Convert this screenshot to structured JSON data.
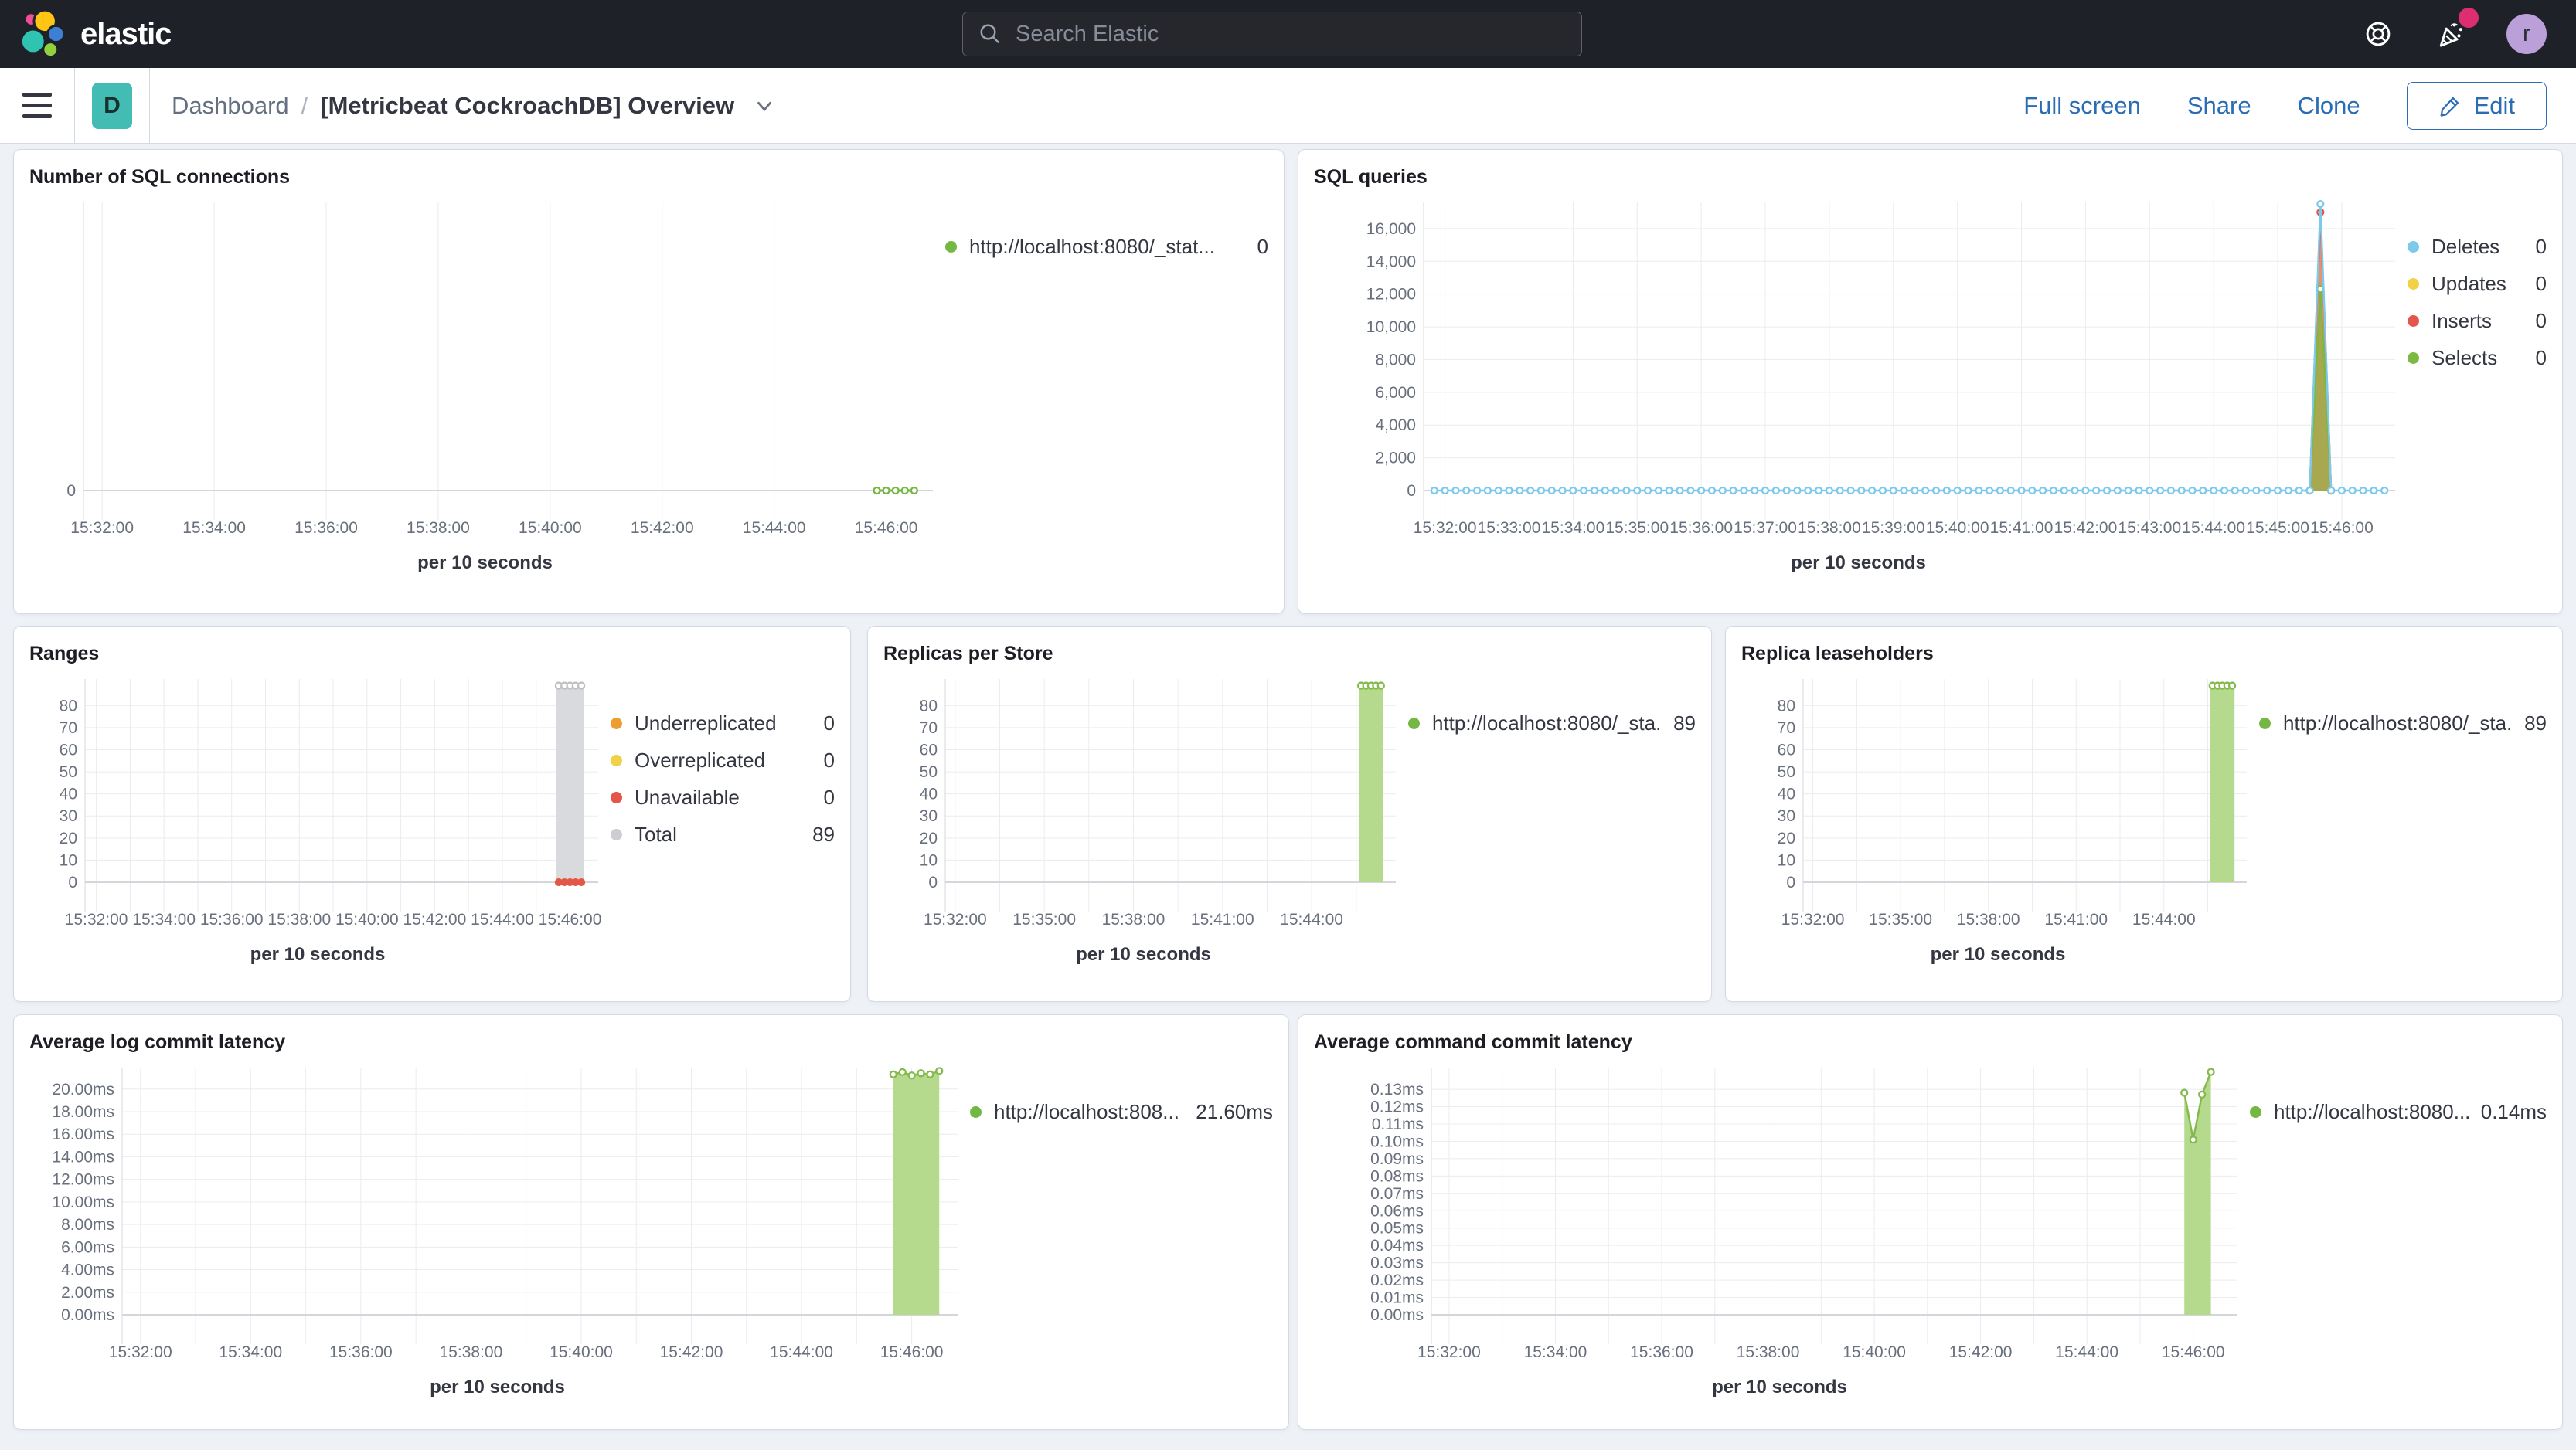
{
  "header": {
    "brand": "elastic",
    "search_placeholder": "Search Elastic",
    "avatar_initial": "r"
  },
  "chrome": {
    "badge": "D",
    "breadcrumb_root": "Dashboard",
    "breadcrumb_separator": "/",
    "title": "[Metricbeat CockroachDB] Overview",
    "full_screen": "Full screen",
    "share": "Share",
    "clone": "Clone",
    "edit": "Edit"
  },
  "chart_data": [
    {
      "type": "line",
      "title": "Number of SQL connections",
      "xlabel": "per 10 seconds",
      "xlim": [
        "15:31:40",
        "15:46:50"
      ],
      "xticks": [
        "15:32:00",
        "15:34:00",
        "15:36:00",
        "15:38:00",
        "15:40:00",
        "15:42:00",
        "15:44:00",
        "15:46:00"
      ],
      "minor_grid": false,
      "ylim": [
        0,
        1
      ],
      "yticks": [
        {
          "v": 0,
          "label": "0"
        }
      ],
      "series": [
        {
          "name": "http://localhost:8080/_stat...",
          "render": "line",
          "color": "#74b843",
          "stroke_width": 3,
          "marker": true,
          "points": [
            [
              "15:45:50",
              0
            ],
            [
              "15:46:00",
              0
            ],
            [
              "15:46:10",
              0
            ],
            [
              "15:46:20",
              0
            ],
            [
              "15:46:30",
              0
            ]
          ]
        }
      ],
      "legend": [
        {
          "label": "http://localhost:8080/_stat...",
          "value": "0",
          "color": "#74b843"
        }
      ]
    },
    {
      "type": "line",
      "title": "SQL queries",
      "xlabel": "per 10 seconds",
      "xlim": [
        "15:31:40",
        "15:46:50"
      ],
      "xticks": [
        "15:32:00",
        "15:33:00",
        "15:34:00",
        "15:35:00",
        "15:36:00",
        "15:37:00",
        "15:38:00",
        "15:39:00",
        "15:40:00",
        "15:41:00",
        "15:42:00",
        "15:43:00",
        "15:44:00",
        "15:45:00",
        "15:46:00"
      ],
      "minor_grid": false,
      "ylim": [
        0,
        17600
      ],
      "yticks": [
        {
          "v": 0,
          "label": "0"
        },
        {
          "v": 2000,
          "label": "2,000"
        },
        {
          "v": 4000,
          "label": "4,000"
        },
        {
          "v": 6000,
          "label": "6,000"
        },
        {
          "v": 8000,
          "label": "8,000"
        },
        {
          "v": 10000,
          "label": "10,000"
        },
        {
          "v": 12000,
          "label": "12,000"
        },
        {
          "v": 14000,
          "label": "14,000"
        },
        {
          "v": 16000,
          "label": "16,000"
        }
      ],
      "series": [
        {
          "name": "Updates",
          "render": "area",
          "color": "#f1d246",
          "fill_opacity": 0.55,
          "stroke_width": 2.5,
          "points": [
            [
              "15:45:30",
              0
            ],
            [
              "15:45:40",
              17100
            ],
            [
              "15:45:50",
              0
            ]
          ]
        },
        {
          "name": "Inserts",
          "render": "area",
          "color": "#e4564a",
          "fill_opacity": 0.6,
          "stroke_width": 2.5,
          "marker": true,
          "points": [
            [
              "15:45:30",
              0
            ],
            [
              "15:45:40",
              17000
            ],
            [
              "15:45:50",
              0
            ]
          ]
        },
        {
          "name": "Selects",
          "render": "area",
          "color": "#7cb940",
          "fill_opacity": 0.6,
          "stroke_width": 2.5,
          "marker": true,
          "points": [
            [
              "15:45:30",
              0
            ],
            [
              "15:45:40",
              12300
            ],
            [
              "15:45:50",
              0
            ]
          ]
        },
        {
          "name": "Deletes",
          "render": "line",
          "color": "#7dc9ec",
          "stroke_width": 2.5,
          "marker": true,
          "points": {
            "start": "15:31:50",
            "end": "15:46:40",
            "step_s": 10,
            "value": 0,
            "spikes": {
              "15:45:40": 17500
            }
          }
        }
      ],
      "legend": [
        {
          "label": "Deletes",
          "value": "0",
          "color": "#7dc9ec"
        },
        {
          "label": "Updates",
          "value": "0",
          "color": "#f1d246"
        },
        {
          "label": "Inserts",
          "value": "0",
          "color": "#e4564a"
        },
        {
          "label": "Selects",
          "value": "0",
          "color": "#7cb940"
        }
      ]
    },
    {
      "type": "bar",
      "title": "Ranges",
      "xlabel": "per 10 seconds",
      "xlim": [
        "15:31:40",
        "15:46:50"
      ],
      "xticks": [
        "15:32:00",
        "15:34:00",
        "15:36:00",
        "15:38:00",
        "15:40:00",
        "15:42:00",
        "15:44:00",
        "15:46:00"
      ],
      "minor_grid": true,
      "ylim": [
        0,
        92
      ],
      "yticks": [
        {
          "v": 0,
          "label": "0"
        },
        {
          "v": 10,
          "label": "10"
        },
        {
          "v": 20,
          "label": "20"
        },
        {
          "v": 30,
          "label": "30"
        },
        {
          "v": 40,
          "label": "40"
        },
        {
          "v": 50,
          "label": "50"
        },
        {
          "v": 60,
          "label": "60"
        },
        {
          "v": 70,
          "label": "70"
        },
        {
          "v": 80,
          "label": "80"
        }
      ],
      "series": [
        {
          "name": "Total",
          "render": "bar",
          "color": "#d9dadd",
          "stroke": "#bfc0c4",
          "marker": true,
          "points": [
            [
              "15:45:40",
              89
            ],
            [
              "15:45:50",
              89
            ],
            [
              "15:46:00",
              89
            ],
            [
              "15:46:10",
              89
            ],
            [
              "15:46:20",
              89
            ]
          ]
        },
        {
          "name": "Underreplicated",
          "render": "dots",
          "color": "#ee9d32",
          "points": [
            [
              "15:45:40",
              0
            ],
            [
              "15:45:50",
              0
            ],
            [
              "15:46:00",
              0
            ],
            [
              "15:46:10",
              0
            ],
            [
              "15:46:20",
              0
            ]
          ]
        },
        {
          "name": "Overreplicated",
          "render": "dots",
          "color": "#f1d246",
          "points": [
            [
              "15:45:40",
              0
            ],
            [
              "15:45:50",
              0
            ],
            [
              "15:46:00",
              0
            ],
            [
              "15:46:10",
              0
            ],
            [
              "15:46:20",
              0
            ]
          ]
        },
        {
          "name": "Unavailable",
          "render": "dots",
          "color": "#e4564a",
          "points": [
            [
              "15:45:40",
              0
            ],
            [
              "15:45:50",
              0
            ],
            [
              "15:46:00",
              0
            ],
            [
              "15:46:10",
              0
            ],
            [
              "15:46:20",
              0
            ]
          ]
        }
      ],
      "legend": [
        {
          "label": "Underreplicated",
          "value": "0",
          "color": "#ee9d32"
        },
        {
          "label": "Overreplicated",
          "value": "0",
          "color": "#f1d246"
        },
        {
          "label": "Unavailable",
          "value": "0",
          "color": "#e4564a"
        },
        {
          "label": "Total",
          "value": "89",
          "color": "#cdced2"
        }
      ]
    },
    {
      "type": "bar",
      "title": "Replicas per Store",
      "xlabel": "per 10 seconds",
      "xlim": [
        "15:31:40",
        "15:46:50"
      ],
      "xticks": [
        "15:32:00",
        "15:35:00",
        "15:38:00",
        "15:41:00",
        "15:44:00"
      ],
      "minor_grid": true,
      "ylim": [
        0,
        92
      ],
      "yticks": [
        {
          "v": 0,
          "label": "0"
        },
        {
          "v": 10,
          "label": "10"
        },
        {
          "v": 20,
          "label": "20"
        },
        {
          "v": 30,
          "label": "30"
        },
        {
          "v": 40,
          "label": "40"
        },
        {
          "v": 50,
          "label": "50"
        },
        {
          "v": 60,
          "label": "60"
        },
        {
          "v": 70,
          "label": "70"
        },
        {
          "v": 80,
          "label": "80"
        }
      ],
      "series": [
        {
          "name": "http://localhost:8080/_sta...",
          "render": "bar",
          "color": "#b6da8d",
          "stroke": "#84ba4c",
          "marker": true,
          "points": [
            [
              "15:45:40",
              89
            ],
            [
              "15:45:50",
              89
            ],
            [
              "15:46:00",
              89
            ],
            [
              "15:46:10",
              89
            ],
            [
              "15:46:20",
              89
            ]
          ]
        }
      ],
      "legend": [
        {
          "label": "http://localhost:8080/_sta...",
          "value": "89",
          "color": "#74b843"
        }
      ]
    },
    {
      "type": "bar",
      "title": "Replica leaseholders",
      "xlabel": "per 10 seconds",
      "xlim": [
        "15:31:40",
        "15:46:50"
      ],
      "xticks": [
        "15:32:00",
        "15:35:00",
        "15:38:00",
        "15:41:00",
        "15:44:00"
      ],
      "minor_grid": true,
      "ylim": [
        0,
        92
      ],
      "yticks": [
        {
          "v": 0,
          "label": "0"
        },
        {
          "v": 10,
          "label": "10"
        },
        {
          "v": 20,
          "label": "20"
        },
        {
          "v": 30,
          "label": "30"
        },
        {
          "v": 40,
          "label": "40"
        },
        {
          "v": 50,
          "label": "50"
        },
        {
          "v": 60,
          "label": "60"
        },
        {
          "v": 70,
          "label": "70"
        },
        {
          "v": 80,
          "label": "80"
        }
      ],
      "series": [
        {
          "name": "http://localhost:8080/_sta...",
          "render": "bar",
          "color": "#b6da8d",
          "stroke": "#84ba4c",
          "marker": true,
          "points": [
            [
              "15:45:40",
              89
            ],
            [
              "15:45:50",
              89
            ],
            [
              "15:46:00",
              89
            ],
            [
              "15:46:10",
              89
            ],
            [
              "15:46:20",
              89
            ]
          ]
        }
      ],
      "legend": [
        {
          "label": "http://localhost:8080/_sta...",
          "value": "89",
          "color": "#74b843"
        }
      ]
    },
    {
      "type": "area",
      "title": "Average log commit latency",
      "xlabel": "per 10 seconds",
      "xlim": [
        "15:31:40",
        "15:46:50"
      ],
      "xticks": [
        "15:32:00",
        "15:34:00",
        "15:36:00",
        "15:38:00",
        "15:40:00",
        "15:42:00",
        "15:44:00",
        "15:46:00"
      ],
      "minor_grid": true,
      "ylim": [
        0,
        21.9
      ],
      "yticks": [
        {
          "v": 0,
          "label": "0.00ms"
        },
        {
          "v": 2,
          "label": "2.00ms"
        },
        {
          "v": 4,
          "label": "4.00ms"
        },
        {
          "v": 6,
          "label": "6.00ms"
        },
        {
          "v": 8,
          "label": "8.00ms"
        },
        {
          "v": 10,
          "label": "10.00ms"
        },
        {
          "v": 12,
          "label": "12.00ms"
        },
        {
          "v": 14,
          "label": "14.00ms"
        },
        {
          "v": 16,
          "label": "16.00ms"
        },
        {
          "v": 18,
          "label": "18.00ms"
        },
        {
          "v": 20,
          "label": "20.00ms"
        }
      ],
      "series": [
        {
          "name": "http://localhost:808...",
          "render": "area",
          "color": "#b6da8d",
          "fill_opacity": 1,
          "stroke": "#84ba4c",
          "stroke_width": 2.5,
          "marker": true,
          "points": [
            [
              "15:45:40",
              21.3
            ],
            [
              "15:45:50",
              21.5
            ],
            [
              "15:46:00",
              21.2
            ],
            [
              "15:46:10",
              21.4
            ],
            [
              "15:46:20",
              21.3
            ],
            [
              "15:46:30",
              21.6
            ]
          ]
        }
      ],
      "legend": [
        {
          "label": "http://localhost:808...",
          "value": "21.60ms",
          "color": "#74b843"
        }
      ]
    },
    {
      "type": "area",
      "title": "Average command commit latency",
      "xlabel": "per 10 seconds",
      "xlim": [
        "15:31:40",
        "15:46:50"
      ],
      "xticks": [
        "15:32:00",
        "15:34:00",
        "15:36:00",
        "15:38:00",
        "15:40:00",
        "15:42:00",
        "15:44:00",
        "15:46:00"
      ],
      "minor_grid": true,
      "ylim": [
        0,
        0.1425
      ],
      "yticks": [
        {
          "v": 0,
          "label": "0.00ms"
        },
        {
          "v": 0.01,
          "label": "0.01ms"
        },
        {
          "v": 0.02,
          "label": "0.02ms"
        },
        {
          "v": 0.03,
          "label": "0.03ms"
        },
        {
          "v": 0.04,
          "label": "0.04ms"
        },
        {
          "v": 0.05,
          "label": "0.05ms"
        },
        {
          "v": 0.06,
          "label": "0.06ms"
        },
        {
          "v": 0.07,
          "label": "0.07ms"
        },
        {
          "v": 0.08,
          "label": "0.08ms"
        },
        {
          "v": 0.09,
          "label": "0.09ms"
        },
        {
          "v": 0.1,
          "label": "0.10ms"
        },
        {
          "v": 0.11,
          "label": "0.11ms"
        },
        {
          "v": 0.12,
          "label": "0.12ms"
        },
        {
          "v": 0.13,
          "label": "0.13ms"
        }
      ],
      "series": [
        {
          "name": "http://localhost:8080...",
          "render": "area",
          "color": "#b6da8d",
          "fill_opacity": 1,
          "stroke": "#84ba4c",
          "stroke_width": 2.5,
          "marker": true,
          "points": [
            [
              "15:45:50",
              0.128
            ],
            [
              "15:46:00",
              0.101
            ],
            [
              "15:46:10",
              0.127
            ],
            [
              "15:46:20",
              0.14
            ]
          ]
        }
      ],
      "legend": [
        {
          "label": "http://localhost:8080...",
          "value": "0.14ms",
          "color": "#74b843"
        }
      ]
    }
  ]
}
